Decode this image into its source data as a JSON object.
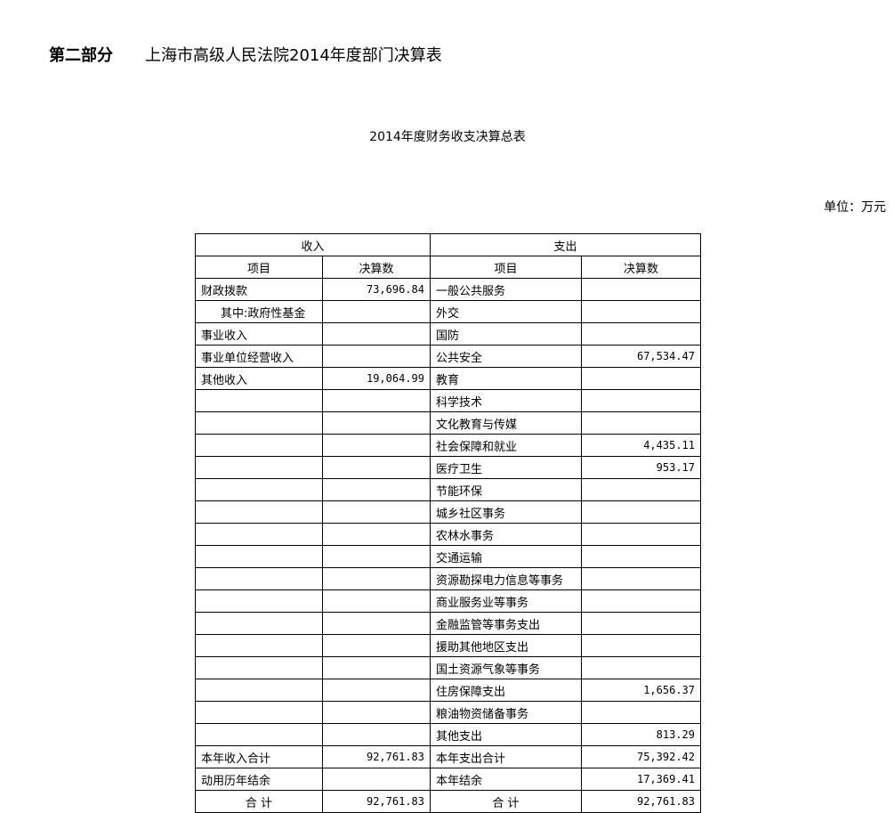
{
  "heading": {
    "part": "第二部分",
    "title": "上海市高级人民法院2014年度部门决算表"
  },
  "table_title": "2014年度财务收支决算总表",
  "unit": "单位：万元",
  "headers": {
    "income": "收入",
    "expense": "支出",
    "item": "项目",
    "amount": "决算数"
  },
  "rows": [
    {
      "in_item": "财政拨款",
      "in_amt": "73,696.84",
      "ex_item": "一般公共服务",
      "ex_amt": ""
    },
    {
      "in_item": "其中:政府性基金",
      "in_amt": "",
      "ex_item": "外交",
      "ex_amt": "",
      "indent": true
    },
    {
      "in_item": "事业收入",
      "in_amt": "",
      "ex_item": "国防",
      "ex_amt": ""
    },
    {
      "in_item": "事业单位经营收入",
      "in_amt": "",
      "ex_item": "公共安全",
      "ex_amt": "67,534.47"
    },
    {
      "in_item": "其他收入",
      "in_amt": "19,064.99",
      "ex_item": "教育",
      "ex_amt": ""
    },
    {
      "in_item": "",
      "in_amt": "",
      "ex_item": "科学技术",
      "ex_amt": ""
    },
    {
      "in_item": "",
      "in_amt": "",
      "ex_item": "文化教育与传媒",
      "ex_amt": ""
    },
    {
      "in_item": "",
      "in_amt": "",
      "ex_item": "社会保障和就业",
      "ex_amt": "4,435.11"
    },
    {
      "in_item": "",
      "in_amt": "",
      "ex_item": "医疗卫生",
      "ex_amt": "953.17"
    },
    {
      "in_item": "",
      "in_amt": "",
      "ex_item": "节能环保",
      "ex_amt": ""
    },
    {
      "in_item": "",
      "in_amt": "",
      "ex_item": "城乡社区事务",
      "ex_amt": ""
    },
    {
      "in_item": "",
      "in_amt": "",
      "ex_item": "农林水事务",
      "ex_amt": ""
    },
    {
      "in_item": "",
      "in_amt": "",
      "ex_item": "交通运输",
      "ex_amt": ""
    },
    {
      "in_item": "",
      "in_amt": "",
      "ex_item": "资源勘探电力信息等事务",
      "ex_amt": ""
    },
    {
      "in_item": "",
      "in_amt": "",
      "ex_item": "商业服务业等事务",
      "ex_amt": ""
    },
    {
      "in_item": "",
      "in_amt": "",
      "ex_item": "金融监管等事务支出",
      "ex_amt": ""
    },
    {
      "in_item": "",
      "in_amt": "",
      "ex_item": "援助其他地区支出",
      "ex_amt": ""
    },
    {
      "in_item": "",
      "in_amt": "",
      "ex_item": "国土资源气象等事务",
      "ex_amt": ""
    },
    {
      "in_item": "",
      "in_amt": "",
      "ex_item": "住房保障支出",
      "ex_amt": "1,656.37"
    },
    {
      "in_item": "",
      "in_amt": "",
      "ex_item": "粮油物资储备事务",
      "ex_amt": ""
    },
    {
      "in_item": "",
      "in_amt": "",
      "ex_item": "其他支出",
      "ex_amt": "813.29"
    },
    {
      "in_item": "本年收入合计",
      "in_amt": "92,761.83",
      "ex_item": "本年支出合计",
      "ex_amt": "75,392.42"
    },
    {
      "in_item": "动用历年结余",
      "in_amt": "",
      "ex_item": "本年结余",
      "ex_amt": "17,369.41"
    },
    {
      "in_item": "合  计",
      "in_amt": "92,761.83",
      "ex_item": "合  计",
      "ex_amt": "92,761.83",
      "total": true
    }
  ]
}
